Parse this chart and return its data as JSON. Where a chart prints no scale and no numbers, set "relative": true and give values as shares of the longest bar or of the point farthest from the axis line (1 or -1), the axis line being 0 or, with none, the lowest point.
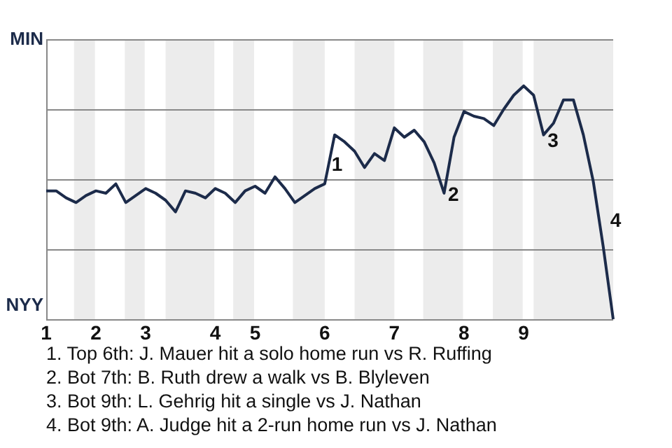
{
  "chart_data": {
    "type": "line",
    "relative": true,
    "color": "#1c2b4a",
    "marker": "none",
    "line_style": "solid",
    "grid": "y",
    "legend": false,
    "categories": [
      "1",
      null,
      null,
      null,
      null,
      "2",
      null,
      null,
      null,
      null,
      "3",
      null,
      null,
      null,
      null,
      null,
      null,
      "4",
      null,
      null,
      null,
      "5",
      null,
      null,
      null,
      null,
      null,
      null,
      "6",
      null,
      null,
      null,
      null,
      null,
      null,
      "7",
      null,
      null,
      null,
      null,
      null,
      null,
      "8",
      null,
      null,
      null,
      null,
      null,
      "9",
      null,
      null,
      null,
      null,
      null,
      null,
      null,
      null,
      null
    ],
    "values": [
      0.55,
      0.55,
      0.52,
      0.5,
      0.53,
      0.55,
      0.54,
      0.58,
      0.5,
      0.53,
      0.56,
      0.54,
      0.51,
      0.46,
      0.55,
      0.54,
      0.52,
      0.56,
      0.54,
      0.5,
      0.55,
      0.57,
      0.54,
      0.61,
      0.56,
      0.5,
      0.53,
      0.56,
      0.58,
      0.79,
      0.76,
      0.72,
      0.65,
      0.71,
      0.68,
      0.82,
      0.78,
      0.81,
      0.76,
      0.67,
      0.54,
      0.78,
      0.89,
      0.87,
      0.86,
      0.83,
      0.9,
      0.96,
      1,
      0.96,
      0.79,
      0.84,
      0.94,
      0.94,
      0.79,
      0.59,
      0.31,
      0
    ],
    "annotations": [
      "MIN",
      "NYY",
      "1",
      "2",
      "3",
      "4",
      "1. Top 6th: J. Mauer hit a solo home run vs R. Ruffing",
      "2. Bot 7th: B. Ruth drew a walk vs B. Blyleven",
      "3. Bot 9th: L. Gehrig hit a single vs J. Nathan",
      "4. Bot 9th: A. Judge hit a 2-run home run vs J. Nathan"
    ]
  }
}
